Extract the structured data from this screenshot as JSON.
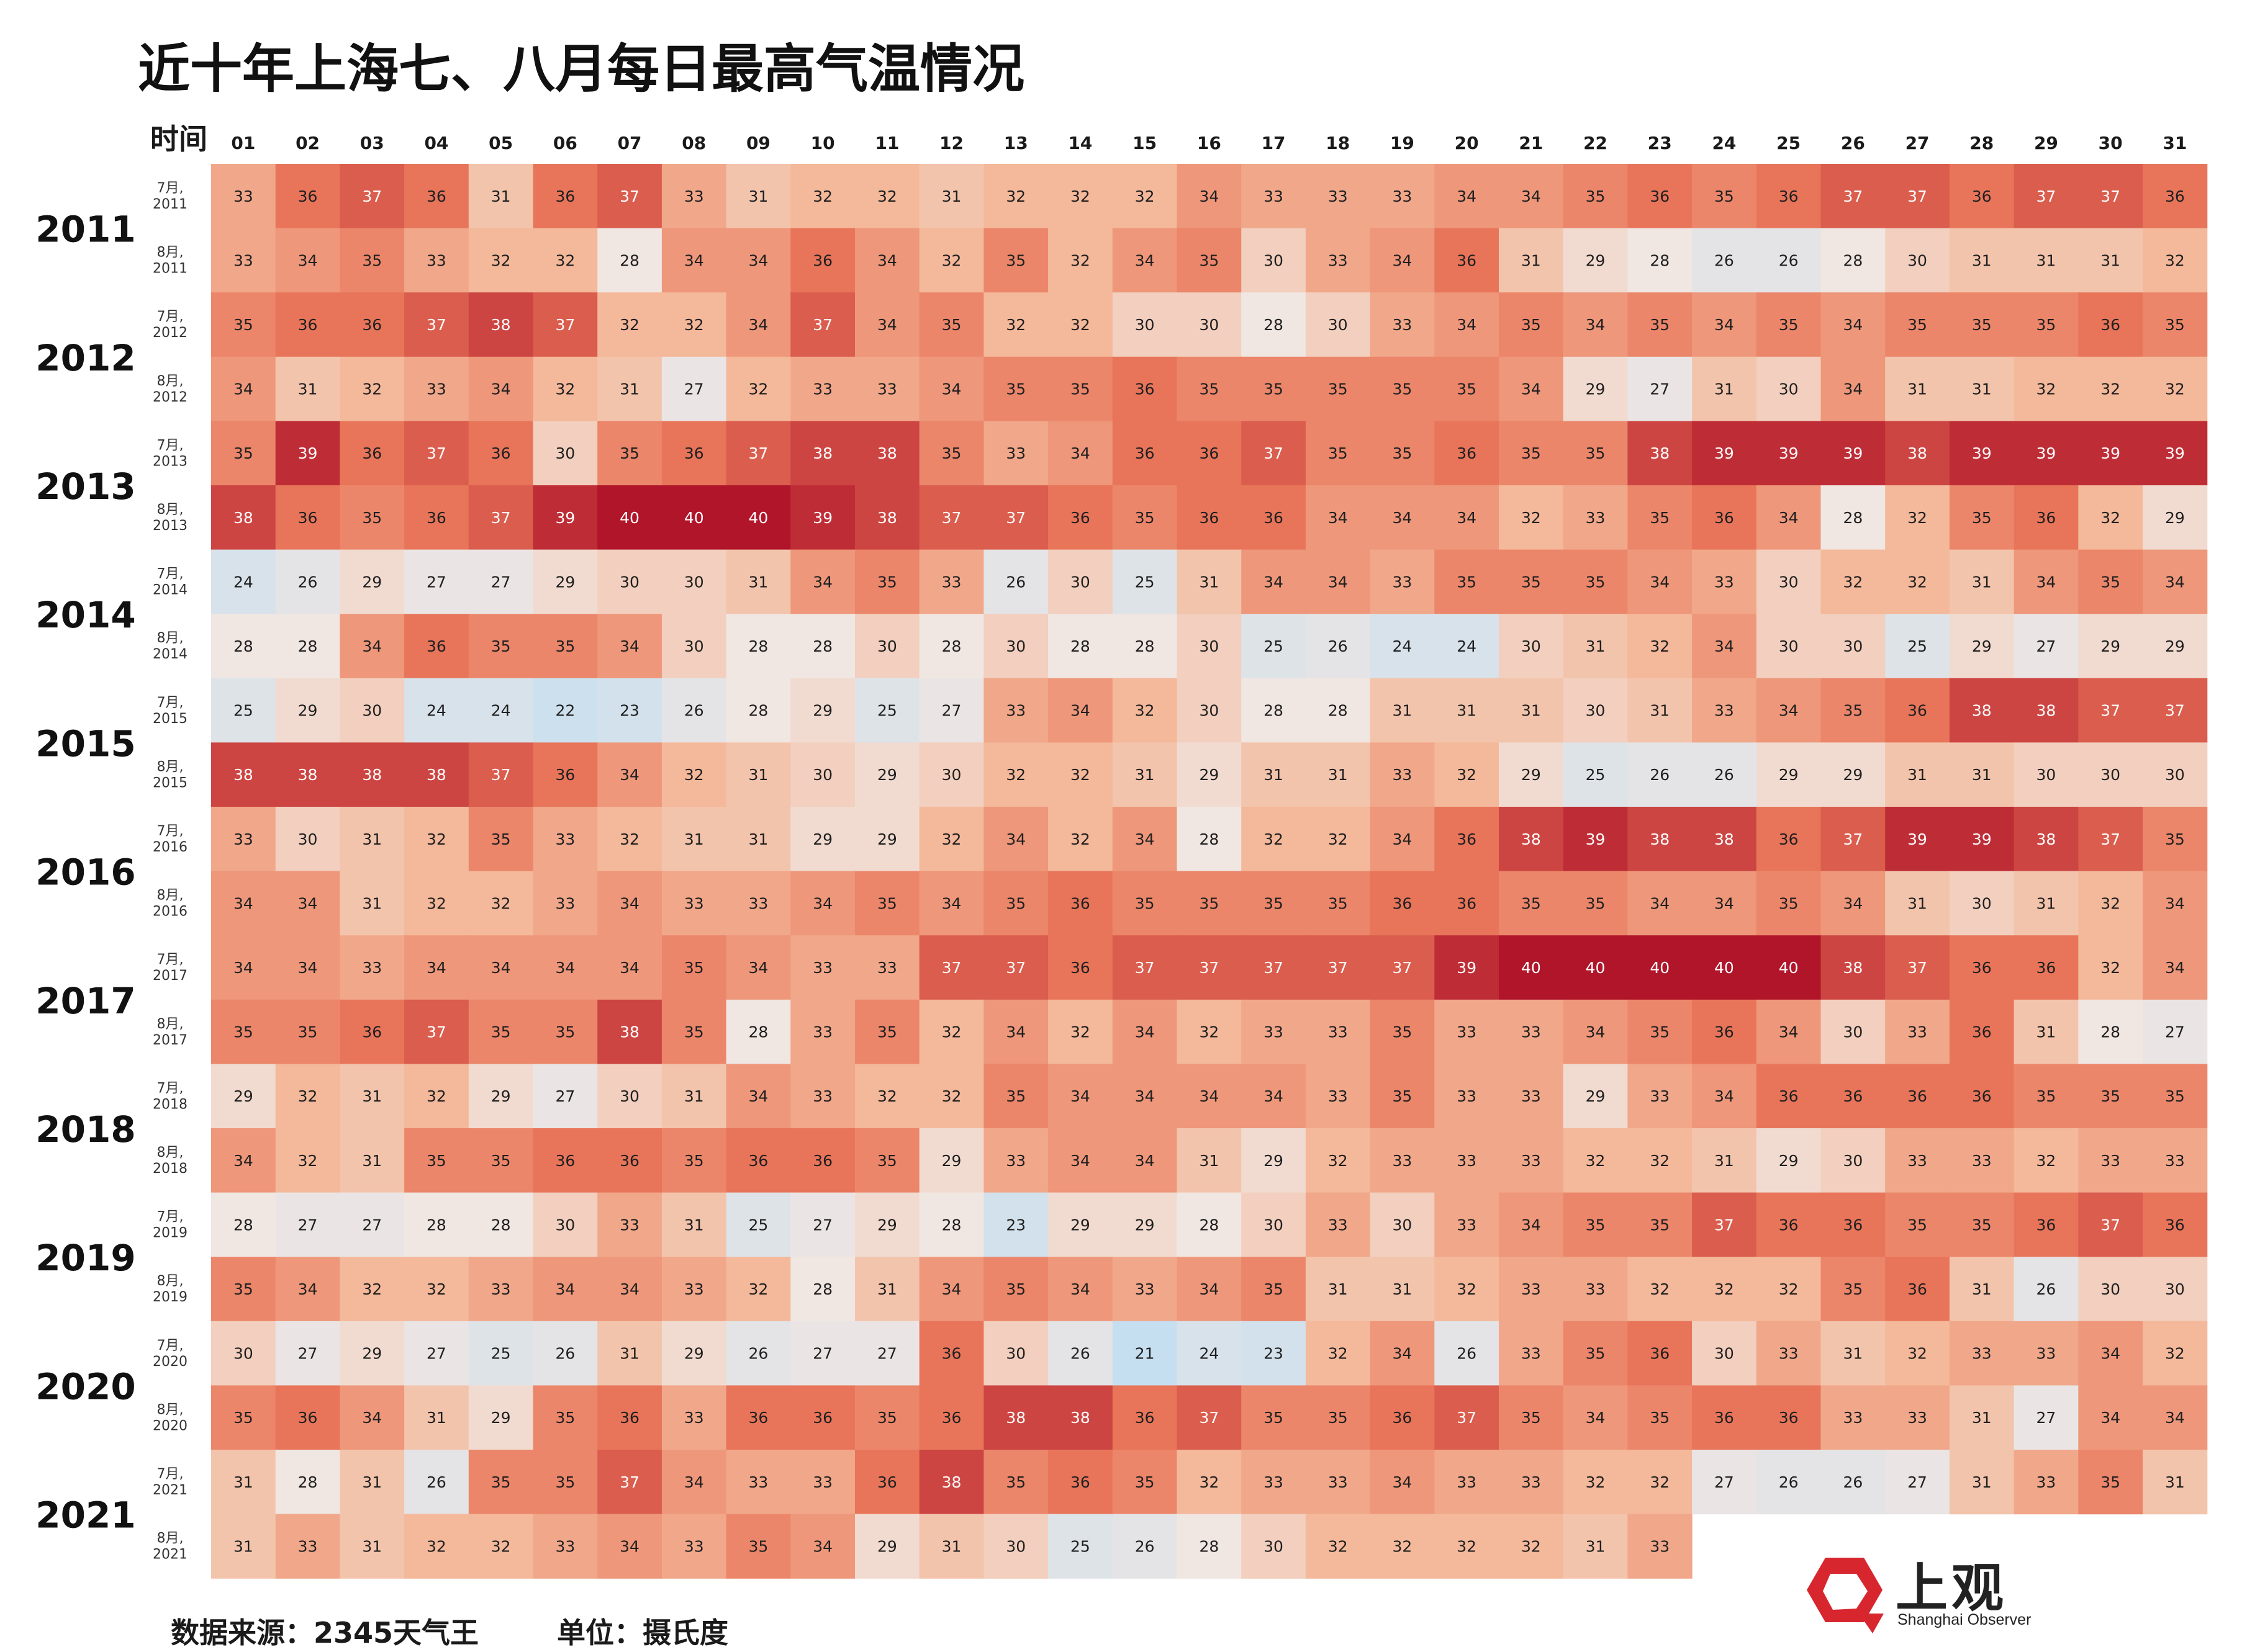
{
  "title": "近十年上海七、八月每日最高气温情况",
  "footer": {
    "source": "数据来源：2345天气王",
    "unit": "单位：摄氏度"
  },
  "logo": {
    "text": "上观",
    "subtext": "Shanghai Observer",
    "icon": "shanghai-observer-logo-icon",
    "color": "#d7262e"
  },
  "chart_data": {
    "type": "heatmap",
    "corner_label": "时间",
    "days": [
      "01",
      "02",
      "03",
      "04",
      "05",
      "06",
      "07",
      "08",
      "09",
      "10",
      "11",
      "12",
      "13",
      "14",
      "15",
      "16",
      "17",
      "18",
      "19",
      "20",
      "21",
      "22",
      "23",
      "24",
      "25",
      "26",
      "27",
      "28",
      "29",
      "30",
      "31"
    ],
    "years": [
      "2011",
      "2012",
      "2013",
      "2014",
      "2015",
      "2016",
      "2017",
      "2018",
      "2019",
      "2020",
      "2021"
    ],
    "rows": [
      {
        "year": "2011",
        "label": [
          "7月,",
          "2011"
        ],
        "values": [
          33,
          36,
          37,
          36,
          31,
          36,
          37,
          33,
          31,
          32,
          32,
          31,
          32,
          32,
          32,
          34,
          33,
          33,
          33,
          34,
          34,
          35,
          36,
          35,
          36,
          37,
          37,
          36,
          37,
          37,
          36
        ]
      },
      {
        "year": "2011",
        "label": [
          "8月,",
          "2011"
        ],
        "values": [
          33,
          34,
          35,
          33,
          32,
          32,
          28,
          34,
          34,
          36,
          34,
          32,
          35,
          32,
          34,
          35,
          30,
          33,
          34,
          36,
          31,
          29,
          28,
          26,
          26,
          28,
          30,
          31,
          31,
          31,
          32
        ]
      },
      {
        "year": "2012",
        "label": [
          "7月,",
          "2012"
        ],
        "values": [
          35,
          36,
          36,
          37,
          38,
          37,
          32,
          32,
          34,
          37,
          34,
          35,
          32,
          32,
          30,
          30,
          28,
          30,
          33,
          34,
          35,
          34,
          35,
          34,
          35,
          34,
          35,
          35,
          35,
          36,
          35
        ]
      },
      {
        "year": "2012",
        "label": [
          "8月,",
          "2012"
        ],
        "values": [
          34,
          31,
          32,
          33,
          34,
          32,
          31,
          27,
          32,
          33,
          33,
          34,
          35,
          35,
          36,
          35,
          35,
          35,
          35,
          35,
          34,
          29,
          27,
          31,
          30,
          34,
          31,
          31,
          32,
          32,
          32
        ]
      },
      {
        "year": "2013",
        "label": [
          "7月,",
          "2013"
        ],
        "values": [
          35,
          39,
          36,
          37,
          36,
          30,
          35,
          36,
          37,
          38,
          38,
          35,
          33,
          34,
          36,
          36,
          37,
          35,
          35,
          36,
          35,
          35,
          38,
          39,
          39,
          39,
          38,
          39,
          39,
          39,
          39
        ]
      },
      {
        "year": "2013",
        "label": [
          "8月,",
          "2013"
        ],
        "values": [
          38,
          36,
          35,
          36,
          37,
          39,
          40,
          40,
          40,
          39,
          38,
          37,
          37,
          36,
          35,
          36,
          36,
          34,
          34,
          34,
          32,
          33,
          35,
          36,
          34,
          28,
          32,
          35,
          36,
          32,
          29
        ]
      },
      {
        "year": "2014",
        "label": [
          "7月,",
          "2014"
        ],
        "values": [
          24,
          26,
          29,
          27,
          27,
          29,
          30,
          30,
          31,
          34,
          35,
          33,
          26,
          30,
          25,
          31,
          34,
          34,
          33,
          35,
          35,
          35,
          34,
          33,
          30,
          32,
          32,
          31,
          34,
          35,
          34
        ]
      },
      {
        "year": "2014",
        "label": [
          "8月,",
          "2014"
        ],
        "values": [
          28,
          28,
          34,
          36,
          35,
          35,
          34,
          30,
          28,
          28,
          30,
          28,
          30,
          28,
          28,
          30,
          25,
          26,
          24,
          24,
          30,
          31,
          32,
          34,
          30,
          30,
          25,
          29,
          27,
          29,
          29
        ]
      },
      {
        "year": "2015",
        "label": [
          "7月,",
          "2015"
        ],
        "values": [
          25,
          29,
          30,
          24,
          24,
          22,
          23,
          26,
          28,
          29,
          25,
          27,
          33,
          34,
          32,
          30,
          28,
          28,
          31,
          31,
          31,
          30,
          31,
          33,
          34,
          35,
          36,
          38,
          38,
          37,
          37
        ]
      },
      {
        "year": "2015",
        "label": [
          "8月,",
          "2015"
        ],
        "values": [
          38,
          38,
          38,
          38,
          37,
          36,
          34,
          32,
          31,
          30,
          29,
          30,
          32,
          32,
          31,
          29,
          31,
          31,
          33,
          32,
          29,
          25,
          26,
          26,
          29,
          29,
          31,
          31,
          30,
          30,
          30
        ]
      },
      {
        "year": "2016",
        "label": [
          "7月,",
          "2016"
        ],
        "values": [
          33,
          30,
          31,
          32,
          35,
          33,
          32,
          31,
          31,
          29,
          29,
          32,
          34,
          32,
          34,
          28,
          32,
          32,
          34,
          36,
          38,
          39,
          38,
          38,
          36,
          37,
          39,
          39,
          38,
          37,
          35
        ]
      },
      {
        "year": "2016",
        "label": [
          "8月,",
          "2016"
        ],
        "values": [
          34,
          34,
          31,
          32,
          32,
          33,
          34,
          33,
          33,
          34,
          35,
          34,
          35,
          36,
          35,
          35,
          35,
          35,
          36,
          36,
          35,
          35,
          34,
          34,
          35,
          34,
          31,
          30,
          31,
          32,
          34
        ]
      },
      {
        "year": "2017",
        "label": [
          "7月,",
          "2017"
        ],
        "values": [
          34,
          34,
          33,
          34,
          34,
          34,
          34,
          35,
          34,
          33,
          33,
          37,
          37,
          36,
          37,
          37,
          37,
          37,
          37,
          39,
          40,
          40,
          40,
          40,
          40,
          38,
          37,
          36,
          36,
          32,
          34
        ]
      },
      {
        "year": "2017",
        "label": [
          "8月,",
          "2017"
        ],
        "values": [
          35,
          35,
          36,
          37,
          35,
          35,
          38,
          35,
          28,
          33,
          35,
          32,
          34,
          32,
          34,
          32,
          33,
          33,
          35,
          33,
          33,
          34,
          35,
          36,
          34,
          30,
          33,
          36,
          31,
          28,
          27
        ]
      },
      {
        "year": "2018",
        "label": [
          "7月,",
          "2018"
        ],
        "values": [
          29,
          32,
          31,
          32,
          29,
          27,
          30,
          31,
          34,
          33,
          32,
          32,
          35,
          34,
          34,
          34,
          34,
          33,
          35,
          33,
          33,
          29,
          33,
          34,
          36,
          36,
          36,
          36,
          35,
          35,
          35
        ]
      },
      {
        "year": "2018",
        "label": [
          "8月,",
          "2018"
        ],
        "values": [
          34,
          32,
          31,
          35,
          35,
          36,
          36,
          35,
          36,
          36,
          35,
          29,
          33,
          34,
          34,
          31,
          29,
          32,
          33,
          33,
          33,
          32,
          32,
          31,
          29,
          30,
          33,
          33,
          32,
          33,
          33
        ]
      },
      {
        "year": "2019",
        "label": [
          "7月,",
          "2019"
        ],
        "values": [
          28,
          27,
          27,
          28,
          28,
          30,
          33,
          31,
          25,
          27,
          29,
          28,
          23,
          29,
          29,
          28,
          30,
          33,
          30,
          33,
          34,
          35,
          35,
          37,
          36,
          36,
          35,
          35,
          36,
          37,
          36
        ]
      },
      {
        "year": "2019",
        "label": [
          "8月,",
          "2019"
        ],
        "values": [
          35,
          34,
          32,
          32,
          33,
          34,
          34,
          33,
          32,
          28,
          31,
          34,
          35,
          34,
          33,
          34,
          35,
          31,
          31,
          32,
          33,
          33,
          32,
          32,
          32,
          35,
          36,
          31,
          26,
          30,
          30
        ]
      },
      {
        "year": "2020",
        "label": [
          "7月,",
          "2020"
        ],
        "values": [
          30,
          27,
          29,
          27,
          25,
          26,
          31,
          29,
          26,
          27,
          27,
          36,
          30,
          26,
          21,
          24,
          23,
          32,
          34,
          26,
          33,
          35,
          36,
          30,
          33,
          31,
          32,
          33,
          33,
          34,
          32
        ]
      },
      {
        "year": "2020",
        "label": [
          "8月,",
          "2020"
        ],
        "values": [
          35,
          36,
          34,
          31,
          29,
          35,
          36,
          33,
          36,
          36,
          35,
          36,
          38,
          38,
          36,
          37,
          35,
          35,
          36,
          37,
          35,
          34,
          35,
          36,
          36,
          33,
          33,
          31,
          27,
          34,
          34
        ]
      },
      {
        "year": "2021",
        "label": [
          "7月,",
          "2021"
        ],
        "values": [
          31,
          28,
          31,
          26,
          35,
          35,
          37,
          34,
          33,
          33,
          36,
          38,
          35,
          36,
          35,
          32,
          33,
          33,
          34,
          33,
          33,
          32,
          32,
          27,
          26,
          26,
          27,
          31,
          33,
          35,
          31
        ]
      },
      {
        "year": "2021",
        "label": [
          "8月,",
          "2021"
        ],
        "values": [
          31,
          33,
          31,
          32,
          32,
          33,
          34,
          33,
          35,
          34,
          29,
          31,
          30,
          25,
          26,
          28,
          30,
          32,
          32,
          32,
          32,
          31,
          33
        ]
      }
    ],
    "unit": "摄氏度",
    "color_scale": {
      "low": "#c6dff0",
      "mid": "#f0e6e2",
      "warm": "#f4b89a",
      "hot": "#e8755a",
      "max": "#b0152a"
    }
  }
}
